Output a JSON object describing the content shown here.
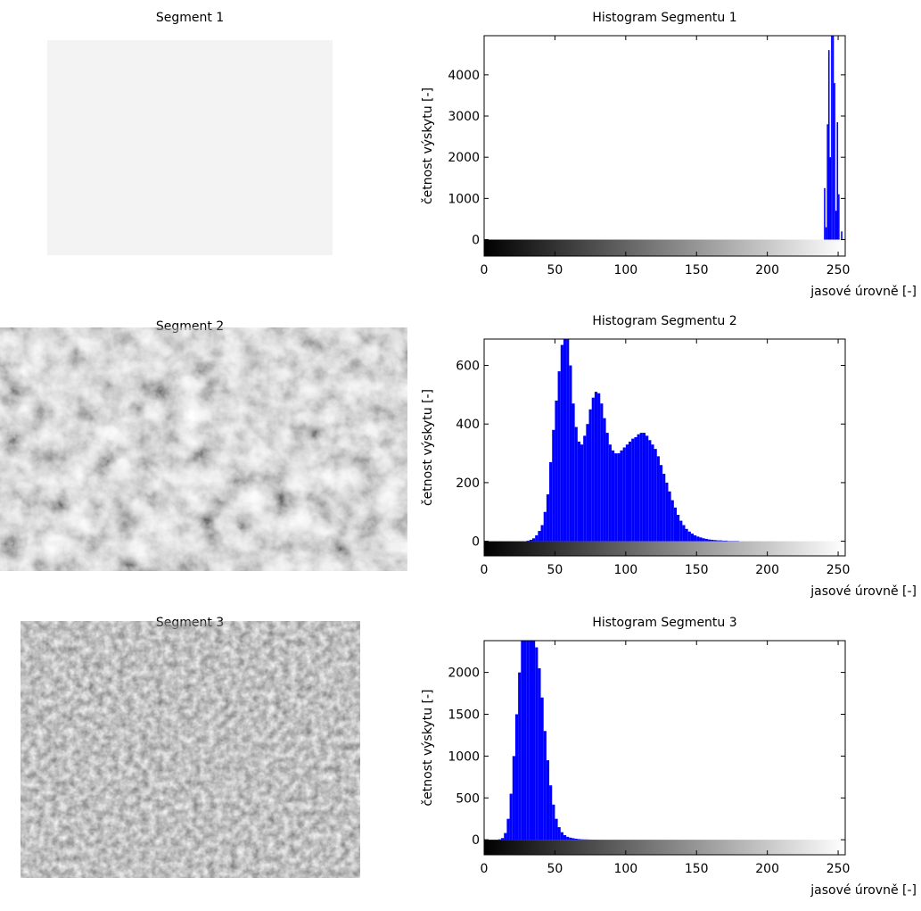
{
  "images": [
    {
      "title": "Segment 1"
    },
    {
      "title": "Segment 2"
    },
    {
      "title": "Segment 3"
    }
  ],
  "chart_data": [
    {
      "type": "bar",
      "title": "Histogram Segmentu 1",
      "xlabel": "jasové úrovně [-]",
      "ylabel": "četnost výskytu [-]",
      "color": "#0000ff",
      "x": [
        239,
        240,
        241,
        242,
        243,
        244,
        245,
        246,
        247,
        248,
        249,
        250,
        251,
        252
      ],
      "values": [
        0,
        1250,
        300,
        2800,
        4600,
        2000,
        4950,
        4950,
        3800,
        700,
        2850,
        1100,
        0,
        200
      ],
      "xlim": [
        0,
        255
      ],
      "xticks": [
        0,
        50,
        100,
        150,
        200,
        250
      ],
      "ylim": [
        -400,
        4950
      ],
      "yticks": [
        0,
        1000,
        2000,
        3000,
        4000
      ]
    },
    {
      "type": "bar",
      "title": "Histogram Segmentu 2",
      "xlabel": "jasové úrovně [-]",
      "ylabel": "četnost výskytu [-]",
      "color": "#0000ff",
      "x": [
        30,
        32,
        34,
        36,
        38,
        40,
        42,
        44,
        46,
        48,
        50,
        52,
        54,
        56,
        58,
        60,
        62,
        64,
        66,
        68,
        70,
        72,
        74,
        76,
        78,
        80,
        82,
        84,
        86,
        88,
        90,
        92,
        94,
        96,
        98,
        100,
        102,
        104,
        106,
        108,
        110,
        112,
        114,
        116,
        118,
        120,
        122,
        124,
        126,
        128,
        130,
        132,
        134,
        136,
        138,
        140,
        142,
        144,
        146,
        148,
        150,
        152,
        154,
        156,
        158,
        160,
        162,
        164,
        166,
        168,
        170,
        172,
        174,
        176,
        178,
        180
      ],
      "values": [
        2,
        5,
        10,
        20,
        35,
        55,
        100,
        160,
        270,
        380,
        480,
        580,
        670,
        690,
        690,
        600,
        470,
        390,
        340,
        330,
        360,
        400,
        450,
        490,
        510,
        505,
        470,
        420,
        370,
        330,
        310,
        300,
        300,
        310,
        320,
        330,
        340,
        350,
        355,
        365,
        370,
        370,
        360,
        345,
        330,
        315,
        290,
        260,
        230,
        200,
        170,
        140,
        115,
        90,
        70,
        55,
        42,
        33,
        26,
        20,
        16,
        13,
        10,
        8,
        6,
        5,
        4,
        3,
        3,
        2,
        2,
        1,
        1,
        1,
        1,
        0
      ],
      "xlim": [
        0,
        255
      ],
      "xticks": [
        0,
        50,
        100,
        150,
        200,
        250
      ],
      "ylim": [
        -50,
        690
      ],
      "yticks": [
        0,
        200,
        400,
        600
      ]
    },
    {
      "type": "bar",
      "title": "Histogram Segmentu 3",
      "xlabel": "jasové úrovně [-]",
      "ylabel": "četnost výskytu [-]",
      "color": "#0000ff",
      "x": [
        10,
        12,
        14,
        16,
        18,
        20,
        22,
        24,
        26,
        28,
        30,
        32,
        34,
        36,
        38,
        40,
        42,
        44,
        46,
        48,
        50,
        52,
        54,
        56,
        58,
        60,
        62,
        64,
        66,
        68,
        70,
        72,
        74,
        76,
        78,
        80
      ],
      "values": [
        5,
        20,
        80,
        250,
        550,
        1000,
        1500,
        2000,
        2450,
        2450,
        2450,
        2450,
        2450,
        2300,
        2050,
        1700,
        1300,
        950,
        650,
        420,
        250,
        150,
        90,
        55,
        35,
        25,
        18,
        12,
        8,
        5,
        4,
        3,
        2,
        1,
        1,
        0
      ],
      "xlim": [
        0,
        255
      ],
      "xticks": [
        0,
        50,
        100,
        150,
        200,
        250
      ],
      "ylim": [
        -180,
        2380
      ],
      "yticks": [
        0,
        500,
        1000,
        1500,
        2000
      ]
    }
  ]
}
